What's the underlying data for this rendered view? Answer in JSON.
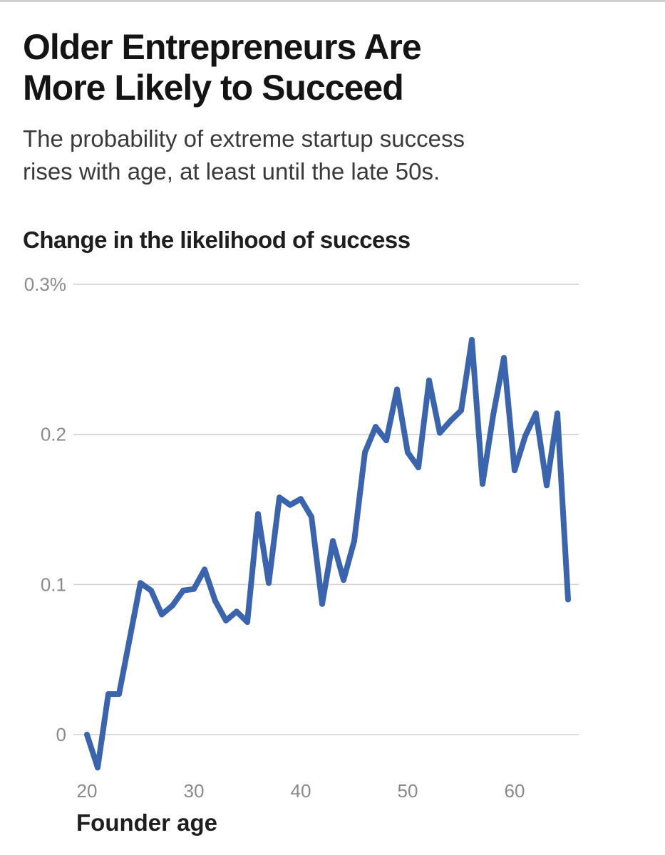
{
  "chart_data": {
    "type": "line",
    "title": "Older Entrepreneurs Are More Likely to Succeed",
    "title_lines": [
      "Older Entrepreneurs Are",
      "More Likely to Succeed"
    ],
    "subtitle": "The probability of extreme startup success rises with age, at least until the late 50s.",
    "subtitle_lines": [
      "The probability of extreme startup success",
      "rises with age, at least until the late 50s."
    ],
    "ylabel": "Change in the likelihood of success",
    "xlabel": "Founder age",
    "ylim": [
      -0.025,
      0.3
    ],
    "xlim": [
      20,
      65
    ],
    "y_ticks": [
      {
        "value": 0.3,
        "label": "0.3%"
      },
      {
        "value": 0.2,
        "label": "0.2"
      },
      {
        "value": 0.1,
        "label": "0.1"
      },
      {
        "value": 0,
        "label": "0"
      }
    ],
    "x_ticks": [
      {
        "value": 20,
        "label": "20"
      },
      {
        "value": 30,
        "label": "30"
      },
      {
        "value": 40,
        "label": "40"
      },
      {
        "value": 50,
        "label": "50"
      },
      {
        "value": 60,
        "label": "60"
      }
    ],
    "grid": true,
    "line_color": "#3a64ad",
    "series": [
      {
        "name": "Change in the likelihood of success",
        "x": [
          20,
          21,
          22,
          23,
          24,
          25,
          26,
          27,
          28,
          29,
          30,
          31,
          32,
          33,
          34,
          35,
          36,
          37,
          38,
          39,
          40,
          41,
          42,
          43,
          44,
          45,
          46,
          47,
          48,
          49,
          50,
          51,
          52,
          53,
          54,
          55,
          56,
          57,
          58,
          59,
          60,
          61,
          62,
          63,
          64,
          65
        ],
        "values": [
          0.0,
          -0.022,
          0.027,
          0.027,
          0.064,
          0.101,
          0.096,
          0.08,
          0.086,
          0.096,
          0.097,
          0.11,
          0.089,
          0.076,
          0.082,
          0.075,
          0.147,
          0.101,
          0.158,
          0.153,
          0.157,
          0.145,
          0.087,
          0.129,
          0.103,
          0.129,
          0.188,
          0.205,
          0.196,
          0.23,
          0.188,
          0.178,
          0.236,
          0.201,
          0.209,
          0.216,
          0.263,
          0.167,
          0.213,
          0.251,
          0.176,
          0.199,
          0.214,
          0.166,
          0.214,
          0.09
        ]
      }
    ]
  }
}
